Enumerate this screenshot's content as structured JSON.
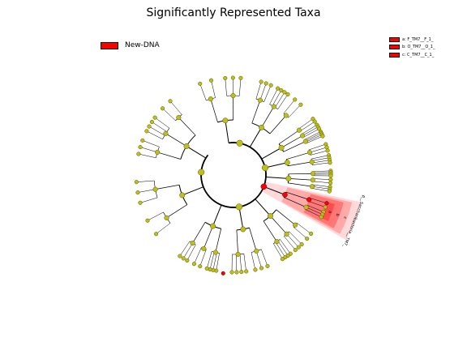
{
  "title": "Significantly Represented Taxa",
  "colors": {
    "highlight": "#ff0000",
    "node": "#bfbf1a",
    "node_stroke": "#555500",
    "edge": "#000000"
  },
  "group_legend": {
    "label": "New-DNA",
    "color": "#ff0000"
  },
  "taxa_legend": [
    {
      "key": "a",
      "text": "a: F_TM7__F_1_"
    },
    {
      "key": "b",
      "text": "b: O_TM7__O_1_"
    },
    {
      "key": "c",
      "text": "c: C_TM7__C_1_"
    }
  ],
  "highlight_labels": {
    "phylum": "p__Saccharibacteria__TM7_",
    "c": "c",
    "b": "b",
    "a": "a"
  }
}
